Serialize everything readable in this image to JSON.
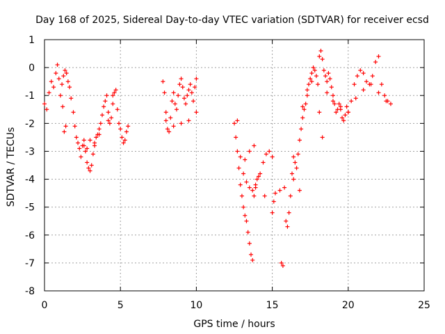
{
  "chart_data": {
    "type": "scatter",
    "title": "Day 168 of 2025, Sidereal Day-to-day VTEC variation (SDTVAR) for receiver ecsd",
    "xlabel": "GPS time / hours",
    "ylabel": "SDTVAR / TECUs",
    "xlim": [
      0,
      25
    ],
    "ylim": [
      -8,
      1
    ],
    "xticks": [
      0,
      5,
      10,
      15,
      20,
      25
    ],
    "yticks": [
      -8,
      -7,
      -6,
      -5,
      -4,
      -3,
      -2,
      -1,
      0,
      1
    ],
    "grid": true,
    "marker": "+",
    "series": [
      {
        "name": "SDTVAR",
        "color": "#ff0000",
        "x": [
          0.0,
          0.15,
          0.3,
          0.45,
          0.6,
          0.75,
          0.85,
          0.95,
          1.05,
          1.15,
          1.25,
          1.35,
          1.45,
          1.55,
          1.65,
          1.75,
          1.9,
          2.0,
          2.1,
          2.2,
          2.3,
          2.4,
          2.5,
          2.6,
          2.7,
          2.8,
          2.9,
          3.0,
          3.1,
          3.2,
          3.3,
          3.4,
          3.5,
          3.6,
          3.7,
          3.8,
          3.9,
          4.0,
          4.1,
          4.2,
          4.3,
          4.4,
          4.5,
          4.6,
          4.7,
          4.8,
          4.9,
          5.0,
          5.1,
          5.2,
          5.3,
          5.4,
          5.5,
          1.2,
          1.3,
          1.4,
          2.6,
          2.8,
          3.0,
          3.3,
          3.6,
          4.2,
          4.5,
          7.8,
          7.9,
          8.0,
          8.1,
          8.2,
          8.3,
          8.4,
          8.5,
          8.6,
          8.7,
          8.8,
          8.9,
          9.0,
          9.1,
          9.2,
          9.3,
          9.4,
          9.5,
          9.6,
          9.7,
          9.8,
          9.9,
          10.0,
          8.0,
          8.5,
          9.0,
          9.5,
          10.0,
          12.5,
          12.6,
          12.7,
          12.8,
          12.9,
          13.0,
          13.1,
          13.2,
          13.3,
          13.4,
          13.5,
          13.6,
          13.7,
          13.8,
          13.9,
          12.7,
          12.9,
          13.1,
          13.3,
          13.5,
          13.7,
          13.9,
          14.0,
          14.2,
          14.4,
          14.6,
          14.8,
          15.0,
          13.2,
          13.5,
          13.8,
          14.1,
          14.5,
          15.0,
          15.1,
          15.2,
          15.5,
          15.6,
          15.7,
          15.8,
          15.9,
          16.0,
          16.1,
          16.2,
          16.3,
          16.4,
          16.5,
          16.6,
          16.7,
          16.8,
          16.9,
          17.0,
          17.1,
          17.2,
          17.3,
          17.4,
          17.5,
          17.6,
          17.7,
          17.8,
          17.9,
          18.0,
          18.1,
          18.2,
          18.3,
          18.4,
          18.5,
          18.6,
          18.7,
          18.8,
          18.9,
          19.0,
          19.1,
          19.2,
          19.3,
          19.4,
          19.5,
          19.6,
          19.7,
          19.8,
          19.9,
          20.0,
          20.2,
          20.4,
          20.6,
          20.8,
          21.0,
          21.2,
          21.4,
          21.6,
          21.8,
          22.0,
          22.2,
          22.4,
          22.6,
          22.8,
          16.4,
          16.8,
          17.0,
          17.3,
          17.6,
          18.1,
          18.3,
          18.6,
          19.0,
          19.5,
          20.0,
          20.5,
          21.0,
          21.5,
          22.0,
          22.5
        ],
        "y": [
          -1.3,
          -1.5,
          -0.9,
          -0.5,
          -0.7,
          -0.2,
          0.1,
          -0.4,
          -1.0,
          -0.6,
          -0.3,
          -0.1,
          -0.2,
          -0.5,
          -0.7,
          -1.1,
          -1.6,
          -2.1,
          -2.5,
          -2.7,
          -2.9,
          -3.2,
          -2.8,
          -2.6,
          -3.0,
          -3.4,
          -3.6,
          -3.7,
          -3.5,
          -3.1,
          -2.7,
          -2.5,
          -2.4,
          -2.2,
          -2.0,
          -1.7,
          -1.4,
          -1.2,
          -1.0,
          -1.6,
          -2.0,
          -1.8,
          -1.3,
          -0.9,
          -0.8,
          -1.5,
          -2.0,
          -2.2,
          -2.5,
          -2.7,
          -2.6,
          -2.3,
          -2.1,
          -1.4,
          -2.3,
          -2.1,
          -2.8,
          -2.9,
          -2.6,
          -2.8,
          -2.4,
          -1.9,
          -1.0,
          -0.5,
          -0.9,
          -1.6,
          -2.2,
          -2.3,
          -1.8,
          -1.2,
          -0.9,
          -1.3,
          -1.5,
          -1.0,
          -0.6,
          -0.4,
          -0.7,
          -1.1,
          -1.3,
          -1.0,
          -0.8,
          -0.6,
          -0.9,
          -1.2,
          -0.7,
          -0.4,
          -1.9,
          -2.1,
          -2.0,
          -1.9,
          -1.6,
          -2.0,
          -2.5,
          -3.0,
          -3.6,
          -4.2,
          -4.6,
          -5.0,
          -5.3,
          -5.5,
          -5.9,
          -6.3,
          -6.7,
          -6.9,
          -4.6,
          -4.3,
          -1.9,
          -3.2,
          -3.8,
          -4.1,
          -4.3,
          -4.4,
          -4.2,
          -4.0,
          -3.8,
          -3.4,
          -3.1,
          -3.0,
          -3.2,
          -3.3,
          -3.0,
          -2.8,
          -3.9,
          -4.6,
          -5.2,
          -4.8,
          -4.5,
          -4.4,
          -7.0,
          -7.1,
          -4.3,
          -5.5,
          -5.7,
          -5.2,
          -4.6,
          -3.8,
          -3.2,
          -3.4,
          -3.6,
          -3.1,
          -2.6,
          -2.2,
          -1.8,
          -1.5,
          -1.3,
          -1.0,
          -0.6,
          -0.4,
          -0.2,
          0.0,
          -0.1,
          -0.3,
          -0.6,
          0.4,
          0.6,
          0.3,
          -0.1,
          -0.3,
          -0.5,
          -0.2,
          -0.4,
          -0.7,
          -1.0,
          -1.3,
          -1.6,
          -1.5,
          -1.3,
          -1.5,
          -1.8,
          -1.9,
          -1.7,
          -1.4,
          -1.6,
          -1.2,
          -0.6,
          -0.3,
          -0.1,
          -0.2,
          -0.5,
          -0.6,
          -0.3,
          0.2,
          0.4,
          -0.6,
          -1.0,
          -1.2,
          -1.3,
          -4.0,
          -4.4,
          -1.4,
          -0.8,
          -0.5,
          -1.6,
          -2.5,
          -0.9,
          -1.2,
          -1.4,
          -1.6,
          -1.1,
          -0.8,
          -0.6,
          -0.9,
          -1.2
        ]
      }
    ]
  }
}
